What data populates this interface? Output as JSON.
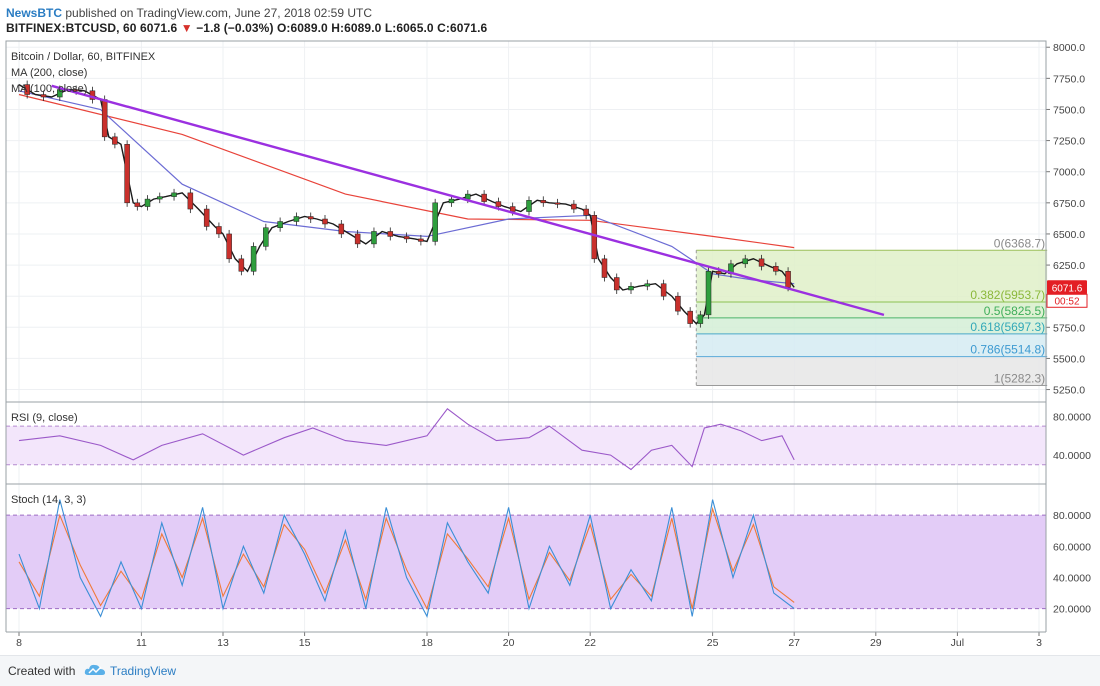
{
  "header": {
    "publisher": "NewsBTC",
    "published_text": "published on TradingView.com, June 27, 2018 02:59 UTC",
    "symbol": "BITFINEX:BTCUSD, 60",
    "last": "6071.6",
    "change": "−1.8 (−0.03%)",
    "ohlc": "O:6089.0 H:6089.0 L:6065.0 C:6071.6"
  },
  "colors": {
    "trendline": "#9b30e0",
    "ma200": "#e8433a",
    "ma100": "#6c6cd4",
    "candle_up": "#2e9e3d",
    "candle_down": "#c9302c",
    "price_tag": "#e31e24",
    "rsi": "#9b59c9",
    "stoch_k": "#3b8fd6",
    "stoch_d": "#f07a3a"
  },
  "chart_data": [
    {
      "type": "line",
      "pane": "price",
      "title": "Bitcoin / Dollar, 60, BITFINEX",
      "indicators": [
        "MA (200, close)",
        "MA (100, close)"
      ],
      "y_ticks": [
        8000,
        7750,
        7500,
        7250,
        7000,
        6750,
        6500,
        6250,
        6000,
        5750,
        5500,
        5250
      ],
      "ylim": [
        5150,
        8050
      ],
      "x_labels": [
        "8",
        "11",
        "13",
        "15",
        "18",
        "20",
        "22",
        "25",
        "27",
        "29",
        "Jul",
        "3"
      ],
      "series": [
        {
          "name": "price",
          "x": [
            8.0,
            8.4,
            8.8,
            9.2,
            9.6,
            10.0,
            10.2,
            10.5,
            10.8,
            11.0,
            11.3,
            11.6,
            12.0,
            12.4,
            12.8,
            13.0,
            13.3,
            13.6,
            13.9,
            14.2,
            14.6,
            15.0,
            15.3,
            15.7,
            16.1,
            16.5,
            16.9,
            17.3,
            17.7,
            18.0,
            18.4,
            18.8,
            19.2,
            19.6,
            19.9,
            20.3,
            20.7,
            21.0,
            21.4,
            21.8,
            22.0,
            22.2,
            22.5,
            22.8,
            23.2,
            23.6,
            24.0,
            24.3,
            24.6,
            24.8,
            25.0,
            25.3,
            25.6,
            26.0,
            26.4,
            26.7,
            27.0
          ],
          "values": [
            7700,
            7620,
            7600,
            7660,
            7650,
            7580,
            7280,
            7220,
            6750,
            6720,
            6780,
            6800,
            6830,
            6700,
            6560,
            6500,
            6300,
            6200,
            6400,
            6550,
            6600,
            6640,
            6620,
            6580,
            6500,
            6420,
            6520,
            6480,
            6460,
            6440,
            6750,
            6780,
            6820,
            6760,
            6720,
            6680,
            6770,
            6750,
            6740,
            6700,
            6650,
            6300,
            6150,
            6050,
            6080,
            6100,
            6000,
            5880,
            5780,
            5850,
            6200,
            6180,
            6260,
            6300,
            6240,
            6200,
            6071.6
          ]
        },
        {
          "name": "MA (200, close)",
          "x": [
            8,
            12,
            16,
            19,
            22,
            25,
            27
          ],
          "values": [
            7620,
            7300,
            6820,
            6620,
            6610,
            6480,
            6390
          ]
        },
        {
          "name": "MA (100, close)",
          "x": [
            8,
            10,
            12,
            14,
            16,
            18,
            20,
            22,
            24,
            25,
            26,
            27
          ],
          "values": [
            7650,
            7500,
            6900,
            6600,
            6520,
            6480,
            6620,
            6650,
            6400,
            6180,
            6130,
            6100
          ]
        }
      ],
      "trendline": {
        "x": [
          8.8,
          27.0,
          29.2
        ],
        "values": [
          7690,
          6250,
          5850
        ]
      },
      "fibonacci": [
        {
          "level": "0",
          "value": 6368.7,
          "label": "0(6368.7)"
        },
        {
          "level": "0.382",
          "value": 5953.7,
          "label": "0.382(5953.7)"
        },
        {
          "level": "0.5",
          "value": 5825.5,
          "label": "0.5(5825.5)"
        },
        {
          "level": "0.618",
          "value": 5697.3,
          "label": "0.618(5697.3)"
        },
        {
          "level": "0.786",
          "value": 5514.8,
          "label": "0.786(5514.8)"
        },
        {
          "level": "1",
          "value": 5282.3,
          "label": "1(5282.3)"
        }
      ],
      "price_label": "6071.6",
      "countdown": "00:52"
    },
    {
      "type": "line",
      "pane": "rsi",
      "title": "RSI (9, close)",
      "y_ticks": [
        80,
        40
      ],
      "y_tick_labels": [
        "80.0000",
        "40.0000"
      ],
      "band": [
        70,
        30
      ],
      "ylim": [
        10,
        95
      ],
      "series": [
        {
          "name": "RSI",
          "x": [
            8,
            9,
            10,
            10.8,
            11.5,
            12.5,
            13.5,
            14.5,
            15.2,
            16,
            17,
            18,
            18.5,
            19,
            19.7,
            20.5,
            21,
            21.8,
            22.5,
            23,
            23.5,
            24,
            24.5,
            24.8,
            25.2,
            25.7,
            26.2,
            26.7,
            27
          ],
          "values": [
            55,
            60,
            50,
            35,
            50,
            62,
            40,
            58,
            68,
            55,
            50,
            60,
            88,
            72,
            55,
            58,
            70,
            45,
            40,
            25,
            45,
            50,
            28,
            68,
            72,
            65,
            55,
            60,
            35
          ]
        }
      ]
    },
    {
      "type": "line",
      "pane": "stoch",
      "title": "Stoch (14, 3, 3)",
      "y_ticks": [
        80,
        60,
        40,
        20
      ],
      "y_tick_labels": [
        "80.0000",
        "60.0000",
        "40.0000",
        "20.0000"
      ],
      "band": [
        80,
        20
      ],
      "ylim": [
        5,
        100
      ],
      "series": [
        {
          "name": "%K",
          "x": [
            8,
            8.5,
            9,
            9.5,
            10,
            10.5,
            11,
            11.5,
            12,
            12.5,
            13,
            13.5,
            14,
            14.5,
            15,
            15.5,
            16,
            16.5,
            17,
            17.5,
            18,
            18.5,
            19,
            19.5,
            20,
            20.5,
            21,
            21.5,
            22,
            22.5,
            23,
            23.5,
            24,
            24.5,
            25,
            25.5,
            26,
            26.5,
            27
          ],
          "values": [
            55,
            20,
            90,
            40,
            15,
            50,
            20,
            75,
            35,
            85,
            20,
            60,
            30,
            80,
            55,
            25,
            70,
            20,
            85,
            40,
            15,
            75,
            50,
            30,
            85,
            20,
            60,
            35,
            80,
            20,
            45,
            25,
            85,
            15,
            90,
            40,
            80,
            30,
            20
          ]
        },
        {
          "name": "%D",
          "x": [
            8,
            8.5,
            9,
            9.5,
            10,
            10.5,
            11,
            11.5,
            12,
            12.5,
            13,
            13.5,
            14,
            14.5,
            15,
            15.5,
            16,
            16.5,
            17,
            17.5,
            18,
            18.5,
            19,
            19.5,
            20,
            20.5,
            21,
            21.5,
            22,
            22.5,
            23,
            23.5,
            24,
            24.5,
            25,
            25.5,
            26,
            26.5,
            27
          ],
          "values": [
            50,
            28,
            80,
            48,
            22,
            44,
            26,
            68,
            40,
            78,
            28,
            55,
            34,
            74,
            58,
            30,
            64,
            26,
            78,
            45,
            20,
            68,
            52,
            34,
            78,
            26,
            56,
            38,
            74,
            26,
            42,
            28,
            78,
            20,
            84,
            44,
            74,
            34,
            24
          ]
        }
      ]
    }
  ]
}
